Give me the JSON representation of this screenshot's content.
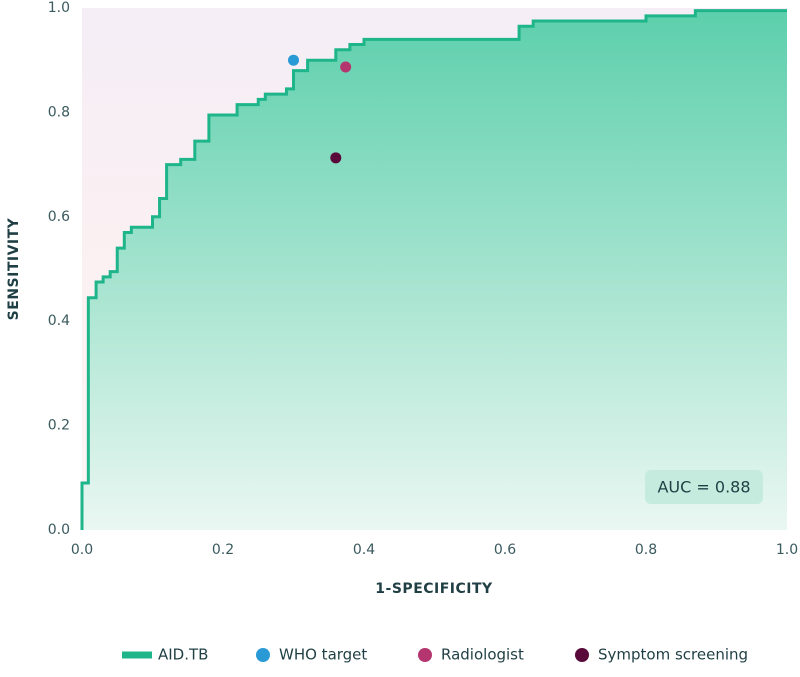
{
  "chart_data": {
    "type": "line",
    "x_label": "1-SPECIFICITY",
    "y_label": "SENSITIVITY",
    "xlim": [
      0,
      1
    ],
    "ylim": [
      0,
      1
    ],
    "xticks": [
      {
        "value": 0,
        "label": "0.0"
      },
      0.2,
      0.4,
      0.6,
      0.8,
      {
        "value": 1,
        "label": "1.0"
      }
    ],
    "yticks": [
      {
        "value": 0,
        "label": "0.0"
      },
      0.2,
      0.4,
      0.6,
      0.8,
      {
        "value": 1,
        "label": "1.0"
      }
    ],
    "annotation": "AUC = 0.88",
    "series": [
      {
        "name": "AID.TB",
        "type": "line",
        "color": "#1fb58a",
        "x": [
          0,
          0,
          0.009,
          0.009,
          0.02,
          0.02,
          0.03,
          0.03,
          0.04,
          0.04,
          0.05,
          0.05,
          0.06,
          0.06,
          0.07,
          0.07,
          0.1,
          0.1,
          0.11,
          0.11,
          0.12,
          0.12,
          0.14,
          0.14,
          0.16,
          0.16,
          0.18,
          0.18,
          0.22,
          0.22,
          0.25,
          0.25,
          0.26,
          0.26,
          0.29,
          0.29,
          0.3,
          0.3,
          0.32,
          0.32,
          0.36,
          0.36,
          0.38,
          0.38,
          0.4,
          0.4,
          0.62,
          0.62,
          0.64,
          0.64,
          0.8,
          0.8,
          0.87,
          0.87,
          1
        ],
        "values": [
          0,
          0.09,
          0.09,
          0.445,
          0.445,
          0.475,
          0.475,
          0.485,
          0.485,
          0.495,
          0.495,
          0.54,
          0.54,
          0.57,
          0.57,
          0.58,
          0.58,
          0.6,
          0.6,
          0.635,
          0.635,
          0.7,
          0.7,
          0.71,
          0.71,
          0.745,
          0.745,
          0.795,
          0.795,
          0.815,
          0.815,
          0.825,
          0.825,
          0.835,
          0.835,
          0.845,
          0.845,
          0.88,
          0.88,
          0.9,
          0.9,
          0.92,
          0.92,
          0.93,
          0.93,
          0.94,
          0.94,
          0.965,
          0.965,
          0.975,
          0.975,
          0.985,
          0.985,
          0.995,
          0.995
        ]
      },
      {
        "name": "WHO target",
        "type": "scatter",
        "color": "#2a9ad6",
        "x": [
          0.3
        ],
        "values": [
          0.9
        ]
      },
      {
        "name": "Radiologist",
        "type": "scatter",
        "color": "#b5366f",
        "x": [
          0.374
        ],
        "values": [
          0.887
        ]
      },
      {
        "name": "Symptom screening",
        "type": "scatter",
        "color": "#5a0a3a",
        "x": [
          0.36
        ],
        "values": [
          0.713
        ]
      }
    ]
  }
}
